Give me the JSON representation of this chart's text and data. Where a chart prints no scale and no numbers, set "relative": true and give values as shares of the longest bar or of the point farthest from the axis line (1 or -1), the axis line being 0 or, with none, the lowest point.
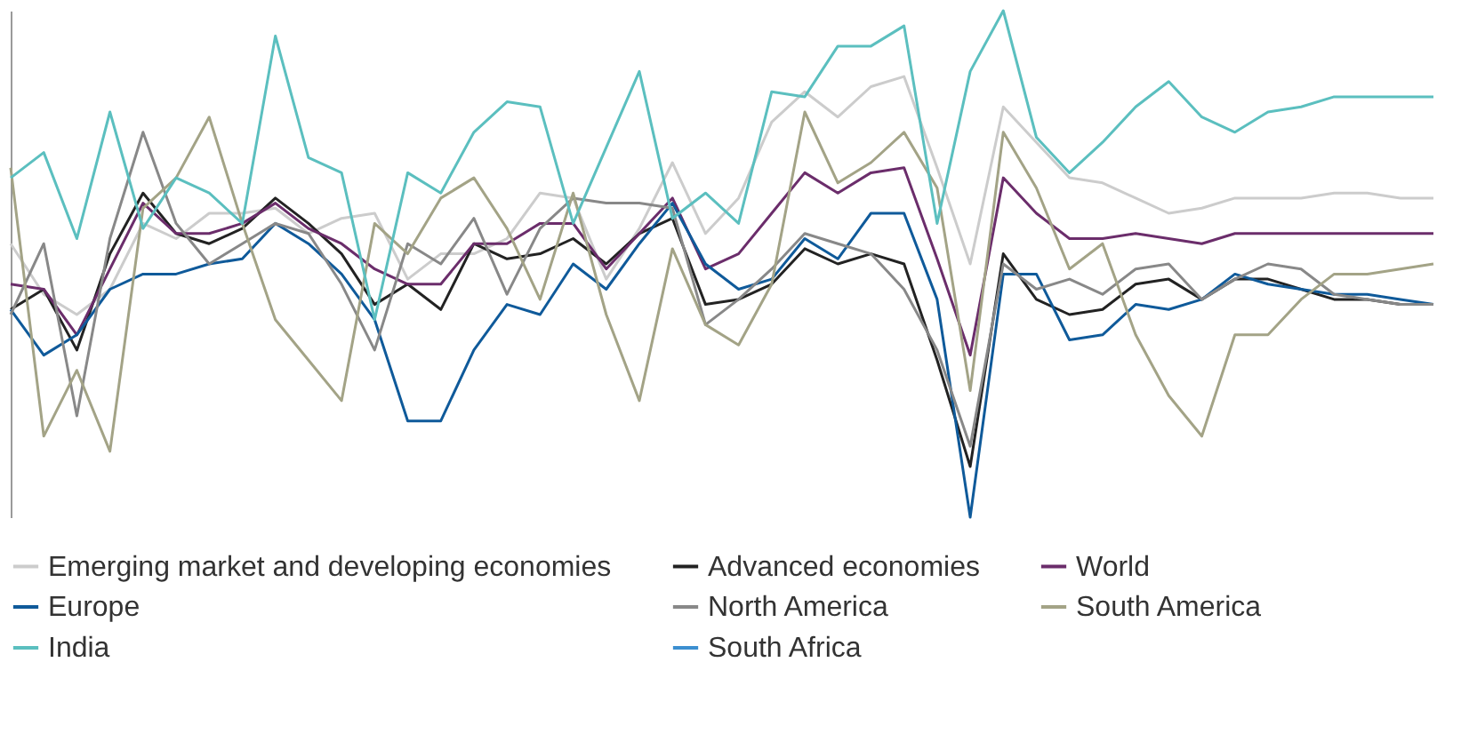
{
  "chart_data": {
    "type": "line",
    "relative": true,
    "legend": "bottom",
    "grid": false,
    "marker": "none",
    "line_style": "solid",
    "categories": [
      null,
      null,
      null,
      null,
      null,
      null,
      null,
      null,
      null,
      null,
      null,
      null,
      null,
      null,
      null,
      null,
      null,
      null,
      null,
      null,
      null,
      null,
      null,
      null,
      null,
      null,
      null,
      null,
      null,
      null,
      null,
      null,
      null,
      null,
      null,
      null,
      null,
      null,
      null,
      null,
      null,
      null,
      null,
      null
    ],
    "series": [
      {
        "name": "Emerging market and developing economies",
        "color": "#cccccc",
        "values": [
          0.54,
          0.44,
          0.4,
          0.45,
          0.58,
          0.55,
          0.6,
          0.6,
          0.61,
          0.56,
          0.59,
          0.6,
          0.47,
          0.52,
          0.52,
          0.55,
          0.64,
          0.63,
          0.47,
          0.57,
          0.7,
          0.56,
          0.63,
          0.78,
          0.84,
          0.79,
          0.85,
          0.87,
          0.69,
          0.5,
          0.81,
          0.74,
          0.67,
          0.66,
          0.63,
          0.6,
          0.61,
          0.63,
          0.63,
          0.63,
          0.64,
          0.64,
          0.63,
          0.63
        ]
      },
      {
        "name": "Advanced economies",
        "color": "#222222",
        "values": [
          0.41,
          0.45,
          0.33,
          0.52,
          0.64,
          0.56,
          0.54,
          0.57,
          0.63,
          0.58,
          0.52,
          0.42,
          0.46,
          0.41,
          0.54,
          0.51,
          0.52,
          0.55,
          0.5,
          0.56,
          0.59,
          0.42,
          0.43,
          0.46,
          0.53,
          0.5,
          0.52,
          0.5,
          0.31,
          0.1,
          0.52,
          0.43,
          0.4,
          0.41,
          0.46,
          0.47,
          0.43,
          0.47,
          0.47,
          0.45,
          0.43,
          0.43,
          0.42,
          0.42
        ]
      },
      {
        "name": "World",
        "color": "#6b2d6b",
        "values": [
          0.46,
          0.45,
          0.36,
          0.49,
          0.62,
          0.56,
          0.56,
          0.58,
          0.62,
          0.57,
          0.54,
          0.49,
          0.46,
          0.46,
          0.54,
          0.54,
          0.58,
          0.58,
          0.49,
          0.56,
          0.63,
          0.49,
          0.52,
          0.6,
          0.68,
          0.64,
          0.68,
          0.69,
          0.51,
          0.32,
          0.67,
          0.6,
          0.55,
          0.55,
          0.56,
          0.55,
          0.54,
          0.56,
          0.56,
          0.56,
          0.56,
          0.56,
          0.56,
          0.56
        ]
      },
      {
        "name": "Europe",
        "color": "#0f5a9a",
        "values": [
          0.41,
          0.32,
          0.36,
          0.45,
          0.48,
          0.48,
          0.5,
          0.51,
          0.58,
          0.54,
          0.48,
          0.39,
          0.19,
          0.19,
          0.33,
          0.42,
          0.4,
          0.5,
          0.45,
          0.54,
          0.62,
          0.5,
          0.45,
          0.47,
          0.55,
          0.51,
          0.6,
          0.6,
          0.43,
          0,
          0.48,
          0.48,
          0.35,
          0.36,
          0.42,
          0.41,
          0.43,
          0.48,
          0.46,
          0.45,
          0.44,
          0.44,
          0.43,
          0.42
        ]
      },
      {
        "name": "North America",
        "color": "#888888",
        "values": [
          0.4,
          0.54,
          0.2,
          0.55,
          0.76,
          0.58,
          0.5,
          0.54,
          0.58,
          0.56,
          0.46,
          0.33,
          0.54,
          0.5,
          0.59,
          0.44,
          0.57,
          0.63,
          0.62,
          0.62,
          0.61,
          0.38,
          0.43,
          0.49,
          0.56,
          0.54,
          0.52,
          0.45,
          0.33,
          0.14,
          0.5,
          0.45,
          0.47,
          0.44,
          0.49,
          0.5,
          0.43,
          0.47,
          0.5,
          0.49,
          0.44,
          0.43,
          0.42,
          0.42
        ]
      },
      {
        "name": "South America",
        "color": "#a3a386",
        "values": [
          0.69,
          0.16,
          0.29,
          0.13,
          0.61,
          0.67,
          0.79,
          0.58,
          0.39,
          0.31,
          0.23,
          0.58,
          0.52,
          0.63,
          0.67,
          0.57,
          0.43,
          0.64,
          0.4,
          0.23,
          0.53,
          0.38,
          0.34,
          0.46,
          0.8,
          0.66,
          0.7,
          0.76,
          0.65,
          0.25,
          0.76,
          0.65,
          0.49,
          0.54,
          0.36,
          0.24,
          0.16,
          0.36,
          0.36,
          0.43,
          0.48,
          0.48,
          0.49,
          0.5
        ]
      },
      {
        "name": "India",
        "color": "#5bbfbf",
        "values": [
          0.67,
          0.72,
          0.55,
          0.8,
          0.57,
          0.67,
          0.64,
          0.58,
          0.95,
          0.71,
          0.68,
          0.39,
          0.68,
          0.64,
          0.76,
          0.82,
          0.81,
          0.58,
          0.73,
          0.88,
          0.59,
          0.64,
          0.58,
          0.84,
          0.83,
          0.93,
          0.93,
          0.97,
          0.58,
          0.88,
          1,
          0.75,
          0.68,
          0.74,
          0.81,
          0.86,
          0.79,
          0.76,
          0.8,
          0.81,
          0.83,
          0.83,
          0.83,
          0.83
        ]
      },
      {
        "name": "South Africa",
        "color": "#3c8fd0",
        "values": [
          null,
          null,
          null,
          null,
          null,
          null,
          null,
          null,
          null,
          null,
          null,
          null,
          null,
          null,
          null,
          null,
          null,
          null,
          null,
          null,
          null,
          null,
          null,
          null,
          null,
          null,
          null,
          null,
          null,
          null,
          null,
          null,
          null,
          null,
          null,
          null,
          null,
          null,
          null,
          null,
          null,
          null,
          null,
          null
        ]
      }
    ]
  }
}
